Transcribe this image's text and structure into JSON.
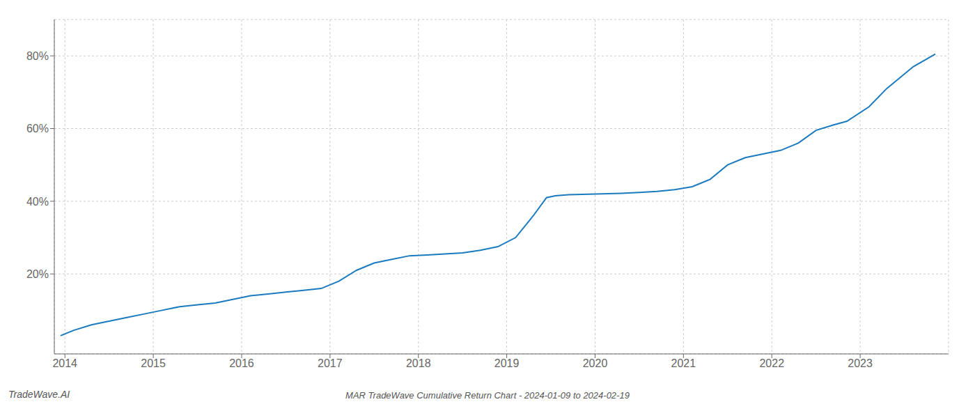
{
  "chart_data": {
    "type": "line",
    "title": "MAR TradeWave Cumulative Return Chart - 2024-01-09 to 2024-02-19",
    "annotations": [
      {
        "text": "TradeWave.AI"
      }
    ],
    "color": "#1a7abf",
    "grid": true,
    "x": [
      2013.95,
      2014.1,
      2014.3,
      2014.5,
      2014.7,
      2014.9,
      2015.1,
      2015.3,
      2015.5,
      2015.7,
      2015.9,
      2016.1,
      2016.3,
      2016.5,
      2016.7,
      2016.9,
      2017.1,
      2017.3,
      2017.5,
      2017.7,
      2017.9,
      2018.1,
      2018.3,
      2018.5,
      2018.7,
      2018.9,
      2019.1,
      2019.3,
      2019.45,
      2019.55,
      2019.7,
      2019.85,
      2020.0,
      2020.15,
      2020.3,
      2020.5,
      2020.7,
      2020.9,
      2021.1,
      2021.3,
      2021.5,
      2021.7,
      2021.9,
      2022.1,
      2022.3,
      2022.5,
      2022.7,
      2022.85,
      2023.1,
      2023.3,
      2023.6,
      2023.85
    ],
    "values": [
      3.0,
      4.5,
      6.0,
      7.0,
      8.0,
      9.0,
      10.0,
      11.0,
      11.5,
      12.0,
      13.0,
      14.0,
      14.5,
      15.0,
      15.5,
      16.0,
      18.0,
      21.0,
      23.0,
      24.0,
      25.0,
      25.2,
      25.5,
      25.8,
      26.5,
      27.5,
      30.0,
      36.0,
      41.0,
      41.5,
      41.8,
      41.9,
      42.0,
      42.1,
      42.2,
      42.4,
      42.7,
      43.2,
      44.0,
      46.0,
      50.0,
      52.0,
      53.0,
      54.0,
      56.0,
      59.5,
      61.0,
      62.0,
      66.0,
      71.0,
      77.0,
      80.5
    ],
    "xlim": [
      2013.88,
      2024.0
    ],
    "ylim": [
      -2,
      90
    ],
    "xticks": [
      2014,
      2015,
      2016,
      2017,
      2018,
      2019,
      2020,
      2021,
      2022,
      2023
    ],
    "yticks": [
      {
        "value": 20,
        "label": "20%"
      },
      {
        "value": 40,
        "label": "40%"
      },
      {
        "value": 60,
        "label": "60%"
      },
      {
        "value": 80,
        "label": "80%"
      }
    ]
  }
}
